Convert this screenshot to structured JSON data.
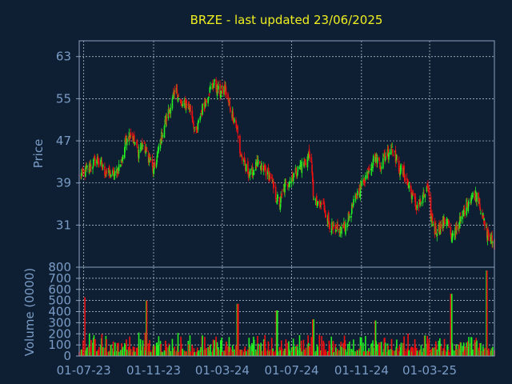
{
  "chart_data": {
    "type": "candlestick",
    "title": "BRZE - last updated 23/06/2025",
    "colors": {
      "background": "#0f1f33",
      "up": "#22ee22",
      "down": "#ee1111",
      "title": "#f0f020",
      "axis_text": "#7a9cc6"
    },
    "x_start": "2023-06-23",
    "x_end": "2025-06-23",
    "x_ticks": [
      {
        "date": "2023-07-01",
        "label": "01-07-23"
      },
      {
        "date": "2023-11-01",
        "label": "01-11-23"
      },
      {
        "date": "2024-03-01",
        "label": "01-03-24"
      },
      {
        "date": "2024-07-01",
        "label": "01-07-24"
      },
      {
        "date": "2024-11-01",
        "label": "01-11-24"
      },
      {
        "date": "2025-03-01",
        "label": "01-03-25"
      }
    ],
    "price_panel": {
      "ylabel": "Price",
      "ylim": [
        23,
        66
      ],
      "y_ticks": [
        63,
        55,
        47,
        39,
        31
      ],
      "grid": true,
      "close_path": [
        [
          "2023-06-23",
          40
        ],
        [
          "2023-07-10",
          42
        ],
        [
          "2023-07-25",
          43.5
        ],
        [
          "2023-08-08",
          41
        ],
        [
          "2023-08-25",
          40.5
        ],
        [
          "2023-09-05",
          43
        ],
        [
          "2023-09-15",
          48
        ],
        [
          "2023-09-22",
          48.5
        ],
        [
          "2023-10-05",
          45
        ],
        [
          "2023-10-12",
          46.5
        ],
        [
          "2023-10-25",
          43.5
        ],
        [
          "2023-11-01",
          41
        ],
        [
          "2023-11-10",
          45.5
        ],
        [
          "2023-11-20",
          50
        ],
        [
          "2023-12-05",
          55
        ],
        [
          "2023-12-12",
          56.5
        ],
        [
          "2023-12-20",
          53.5
        ],
        [
          "2023-12-28",
          54
        ],
        [
          "2024-01-05",
          53
        ],
        [
          "2024-01-15",
          48
        ],
        [
          "2024-01-22",
          52
        ],
        [
          "2024-02-05",
          56
        ],
        [
          "2024-02-15",
          58
        ],
        [
          "2024-02-25",
          56
        ],
        [
          "2024-03-05",
          57
        ],
        [
          "2024-03-15",
          53
        ],
        [
          "2024-03-25",
          50.5
        ],
        [
          "2024-04-01",
          45
        ],
        [
          "2024-04-10",
          42
        ],
        [
          "2024-04-20",
          40.5
        ],
        [
          "2024-05-01",
          42.5
        ],
        [
          "2024-05-15",
          41.5
        ],
        [
          "2024-05-25",
          40
        ],
        [
          "2024-06-01",
          37
        ],
        [
          "2024-06-10",
          35
        ],
        [
          "2024-06-20",
          38.5
        ],
        [
          "2024-07-01",
          40
        ],
        [
          "2024-07-15",
          42
        ],
        [
          "2024-07-25",
          43
        ],
        [
          "2024-08-03",
          45
        ],
        [
          "2024-08-08",
          37
        ],
        [
          "2024-08-15",
          34.5
        ],
        [
          "2024-08-25",
          35
        ],
        [
          "2024-09-05",
          31.5
        ],
        [
          "2024-09-15",
          29.5
        ],
        [
          "2024-09-25",
          30
        ],
        [
          "2024-10-05",
          31
        ],
        [
          "2024-10-15",
          34
        ],
        [
          "2024-10-25",
          37
        ],
        [
          "2024-11-05",
          39.5
        ],
        [
          "2024-11-15",
          42
        ],
        [
          "2024-11-25",
          44
        ],
        [
          "2024-12-05",
          42.5
        ],
        [
          "2024-12-15",
          44.5
        ],
        [
          "2024-12-25",
          46
        ],
        [
          "2025-01-05",
          42
        ],
        [
          "2025-01-15",
          40.5
        ],
        [
          "2025-01-25",
          38
        ],
        [
          "2025-02-05",
          34.5
        ],
        [
          "2025-02-15",
          35.5
        ],
        [
          "2025-02-25",
          38
        ],
        [
          "2025-03-03",
          33
        ],
        [
          "2025-03-10",
          30
        ],
        [
          "2025-03-20",
          30.5
        ],
        [
          "2025-04-01",
          32.5
        ],
        [
          "2025-04-08",
          28
        ],
        [
          "2025-04-15",
          30
        ],
        [
          "2025-04-25",
          32
        ],
        [
          "2025-05-05",
          35
        ],
        [
          "2025-05-15",
          36.5
        ],
        [
          "2025-05-25",
          37
        ],
        [
          "2025-06-01",
          33
        ],
        [
          "2025-06-10",
          29.5
        ],
        [
          "2025-06-23",
          27
        ]
      ]
    },
    "volume_panel": {
      "ylabel": "Volume (0000)",
      "ylim": [
        0,
        800
      ],
      "y_ticks": [
        0,
        100,
        200,
        300,
        400,
        500,
        600,
        700,
        800
      ],
      "grid": true,
      "spikes": [
        [
          "2023-07-02",
          530
        ],
        [
          "2023-10-20",
          500
        ],
        [
          "2024-03-28",
          470
        ],
        [
          "2024-06-05",
          410
        ],
        [
          "2024-08-08",
          330
        ],
        [
          "2024-11-25",
          320
        ],
        [
          "2025-04-08",
          560
        ],
        [
          "2025-06-09",
          770
        ]
      ]
    }
  }
}
